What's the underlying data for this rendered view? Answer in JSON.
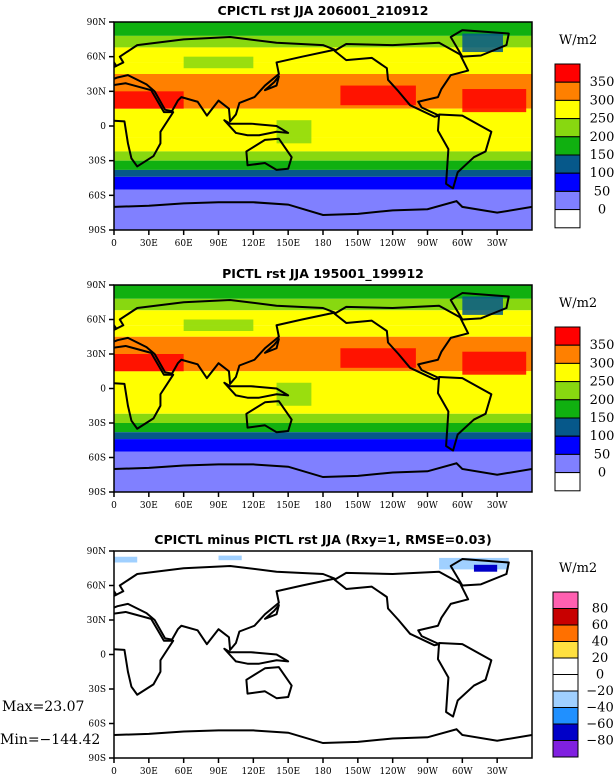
{
  "chart_data": [
    {
      "type": "heatmap",
      "title": "CPICTL rst JJA 206001_210912",
      "units": "W/m2",
      "xlim": [
        0,
        360
      ],
      "ylim": [
        -90,
        90
      ],
      "x_ticks": [
        "0",
        "30E",
        "60E",
        "90E",
        "120E",
        "150E",
        "180",
        "150W",
        "120W",
        "90W",
        "60W",
        "30W"
      ],
      "y_ticks": [
        "90N",
        "60N",
        "30N",
        "0",
        "30S",
        "60S",
        "90S"
      ],
      "levels": [
        "350",
        "300",
        "250",
        "200",
        "150",
        "100",
        "50",
        "0"
      ],
      "colors": [
        "#ffffff",
        "#8080ff",
        "#0000ff",
        "#06588a",
        "#10b010",
        "#88d810",
        "#ffff00",
        "#ff8000",
        "#ff0000"
      ],
      "zonal_bands": [
        [
          90,
          78,
          4
        ],
        [
          78,
          68,
          5
        ],
        [
          68,
          55,
          6
        ],
        [
          55,
          45,
          6
        ],
        [
          45,
          15,
          7
        ],
        [
          15,
          -10,
          6
        ],
        [
          -10,
          -22,
          6
        ],
        [
          -22,
          -30,
          5
        ],
        [
          -30,
          -38,
          4
        ],
        [
          -38,
          -44,
          3
        ],
        [
          -44,
          -55,
          2
        ],
        [
          -55,
          -90,
          1
        ]
      ]
    },
    {
      "type": "heatmap",
      "title": "PICTL rst JJA 195001_199912",
      "units": "W/m2",
      "xlim": [
        0,
        360
      ],
      "ylim": [
        -90,
        90
      ],
      "x_ticks": [
        "0",
        "30E",
        "60E",
        "90E",
        "120E",
        "150E",
        "180",
        "150W",
        "120W",
        "90W",
        "60W",
        "30W"
      ],
      "y_ticks": [
        "90N",
        "60N",
        "30N",
        "0",
        "30S",
        "60S",
        "90S"
      ],
      "levels": [
        "350",
        "300",
        "250",
        "200",
        "150",
        "100",
        "50",
        "0"
      ],
      "colors": [
        "#ffffff",
        "#8080ff",
        "#0000ff",
        "#06588a",
        "#10b010",
        "#88d810",
        "#ffff00",
        "#ff8000",
        "#ff0000"
      ],
      "zonal_bands": [
        [
          90,
          78,
          4
        ],
        [
          78,
          68,
          5
        ],
        [
          68,
          55,
          6
        ],
        [
          55,
          45,
          6
        ],
        [
          45,
          15,
          7
        ],
        [
          15,
          -10,
          6
        ],
        [
          -10,
          -22,
          6
        ],
        [
          -22,
          -30,
          5
        ],
        [
          -30,
          -38,
          4
        ],
        [
          -38,
          -44,
          3
        ],
        [
          -44,
          -55,
          2
        ],
        [
          -55,
          -90,
          1
        ]
      ]
    },
    {
      "type": "heatmap",
      "title": "CPICTL minus PICTL rst JJA (Rxy=1, RMSE=0.03)",
      "units": "W/m2",
      "xlim": [
        0,
        360
      ],
      "ylim": [
        -90,
        90
      ],
      "x_ticks": [
        "0",
        "30E",
        "60E",
        "90E",
        "120E",
        "150E",
        "180",
        "150W",
        "120W",
        "90W",
        "60W",
        "30W"
      ],
      "y_ticks": [
        "90N",
        "60N",
        "30N",
        "0",
        "30S",
        "60S",
        "90S"
      ],
      "levels": [
        "80",
        "60",
        "40",
        "20",
        "0",
        "−20",
        "−40",
        "−60",
        "−80"
      ],
      "colors": [
        "#8020e0",
        "#0000c8",
        "#2090ff",
        "#a0d0ff",
        "#ffffff",
        "#ffffff",
        "#ffe040",
        "#ff7000",
        "#c80000",
        "#ff60b0"
      ],
      "zonal_bands": [
        [
          90,
          -90,
          4
        ]
      ],
      "max_label": "Max=23.07",
      "min_label": "Min=−144.42"
    }
  ]
}
